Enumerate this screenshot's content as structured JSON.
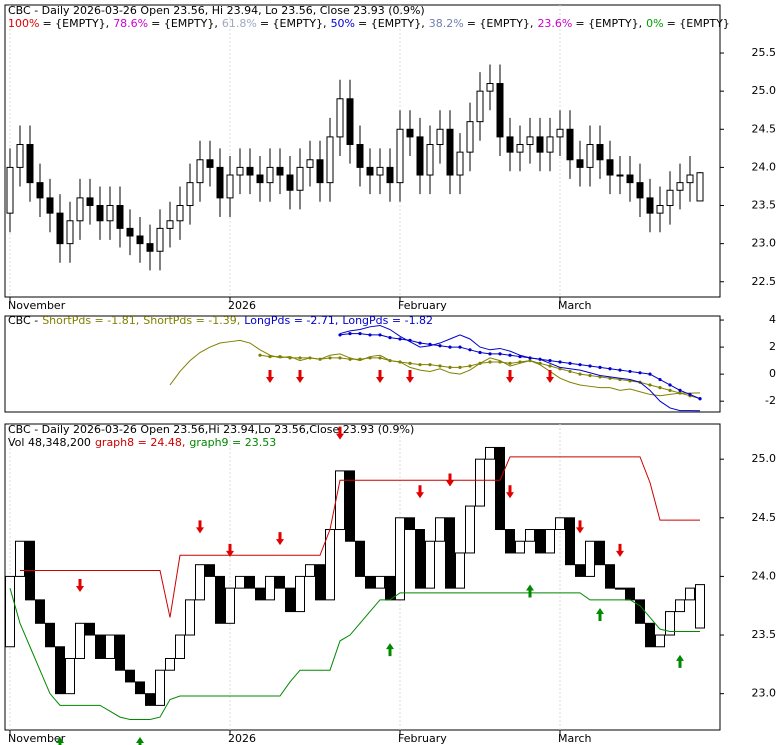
{
  "chart_data": [
    {
      "type": "candlestick",
      "title": "CBC - Daily 2026-03-26 Open 23.56, Hi 23.94, Lo 23.56, Close 23.93 (0.9%)",
      "fib_levels": [
        {
          "label": "100%",
          "text": "= {EMPTY},",
          "color": "#e00000"
        },
        {
          "label": "78.6%",
          "text": "= {EMPTY},",
          "color": "#d000d0"
        },
        {
          "label": "61.8%",
          "text": "= {EMPTY},",
          "color": "#a0a8c0"
        },
        {
          "label": "50%",
          "text": "= {EMPTY},",
          "color": "#0000e0"
        },
        {
          "label": "38.2%",
          "text": "= {EMPTY},",
          "color": "#7080b0"
        },
        {
          "label": "23.6%",
          "text": "= {EMPTY},",
          "color": "#d000d0"
        },
        {
          "label": "0%",
          "text": "= {EMPTY}",
          "color": "#00a000"
        }
      ],
      "open": [
        23.4,
        24.0,
        24.3,
        23.8,
        23.6,
        23.4,
        23.0,
        23.3,
        23.6,
        23.5,
        23.3,
        23.5,
        23.2,
        23.1,
        23.0,
        22.9,
        23.2,
        23.3,
        23.5,
        23.8,
        24.1,
        24.0,
        23.6,
        23.9,
        24.0,
        23.9,
        23.8,
        24.0,
        23.9,
        23.7,
        24.0,
        24.1,
        23.8,
        24.4,
        24.9,
        24.3,
        24.0,
        23.9,
        24.0,
        23.8,
        24.5,
        24.4,
        23.9,
        24.3,
        24.5,
        23.9,
        24.2,
        24.6,
        25.0,
        25.1,
        24.4,
        24.2,
        24.3,
        24.4,
        24.2,
        24.4,
        24.5,
        24.1,
        24.0,
        24.3,
        24.1,
        23.9,
        23.9,
        23.8,
        23.6,
        23.4,
        23.5,
        23.7,
        23.8,
        23.56
      ],
      "high": [
        24.25,
        24.55,
        24.55,
        24.05,
        23.85,
        23.65,
        23.55,
        23.85,
        23.85,
        23.75,
        23.75,
        23.75,
        23.45,
        23.35,
        23.25,
        23.45,
        23.55,
        23.75,
        24.05,
        24.35,
        24.35,
        24.25,
        24.15,
        24.25,
        24.25,
        24.15,
        24.25,
        24.25,
        24.15,
        24.25,
        24.35,
        24.35,
        24.65,
        25.15,
        25.15,
        24.55,
        24.25,
        24.25,
        24.25,
        24.75,
        24.75,
        24.65,
        24.55,
        24.75,
        24.75,
        24.45,
        24.85,
        25.25,
        25.35,
        25.35,
        24.65,
        24.55,
        24.65,
        24.65,
        24.65,
        24.75,
        24.75,
        24.35,
        24.55,
        24.55,
        24.35,
        24.15,
        24.15,
        24.05,
        23.85,
        23.75,
        23.95,
        24.05,
        24.15,
        23.94
      ],
      "low": [
        23.15,
        23.75,
        23.55,
        23.35,
        23.15,
        22.75,
        22.75,
        23.05,
        23.25,
        23.05,
        23.05,
        22.95,
        22.85,
        22.75,
        22.65,
        22.65,
        22.95,
        23.05,
        23.25,
        23.55,
        23.75,
        23.35,
        23.35,
        23.65,
        23.65,
        23.55,
        23.55,
        23.65,
        23.45,
        23.45,
        23.75,
        23.55,
        23.55,
        24.15,
        24.05,
        23.75,
        23.65,
        23.65,
        23.55,
        23.55,
        24.15,
        23.65,
        23.65,
        24.05,
        23.65,
        23.65,
        23.95,
        24.35,
        24.75,
        24.15,
        23.95,
        23.95,
        24.05,
        23.95,
        23.95,
        24.15,
        23.85,
        23.75,
        23.75,
        23.85,
        23.65,
        23.65,
        23.55,
        23.35,
        23.15,
        23.15,
        23.25,
        23.45,
        23.55,
        23.56
      ],
      "close": [
        24.0,
        24.3,
        23.8,
        23.6,
        23.4,
        23.0,
        23.3,
        23.6,
        23.5,
        23.3,
        23.5,
        23.2,
        23.1,
        23.0,
        22.9,
        23.2,
        23.3,
        23.5,
        23.8,
        24.1,
        24.0,
        23.6,
        23.9,
        24.0,
        23.9,
        23.8,
        24.0,
        23.9,
        23.7,
        24.0,
        24.1,
        23.8,
        24.4,
        24.9,
        24.3,
        24.0,
        23.9,
        24.0,
        23.8,
        24.5,
        24.4,
        23.9,
        24.3,
        24.5,
        23.9,
        24.2,
        24.6,
        25.0,
        25.1,
        24.4,
        24.2,
        24.3,
        24.4,
        24.2,
        24.4,
        24.5,
        24.1,
        24.0,
        24.3,
        24.1,
        23.9,
        23.9,
        23.8,
        23.6,
        23.4,
        23.5,
        23.7,
        23.8,
        23.9,
        23.93
      ],
      "ylim": [
        22.3,
        26.13
      ],
      "yticks": [
        22.5,
        {
          "value": 23,
          "label": "23.0"
        },
        23.5,
        {
          "value": 24,
          "label": "24.0"
        },
        24.5,
        {
          "value": 25,
          "label": "25.0"
        },
        25.5
      ],
      "xticks": [
        {
          "value": 0,
          "label": "November"
        },
        {
          "value": 22,
          "label": "2026"
        },
        {
          "value": 39,
          "label": "February"
        },
        {
          "value": 55,
          "label": "March"
        }
      ]
    },
    {
      "type": "line",
      "title": "CBC -",
      "series": [
        {
          "name": "ShortPds = -1.81,",
          "color": "#808000",
          "dotted": true,
          "values": [
            null,
            null,
            null,
            null,
            null,
            null,
            null,
            null,
            null,
            null,
            null,
            null,
            null,
            null,
            null,
            null,
            null,
            null,
            null,
            null,
            null,
            null,
            null,
            null,
            null,
            1.4,
            1.3,
            1.3,
            1.2,
            1.2,
            1.2,
            1.1,
            1.2,
            1.2,
            1.1,
            1.1,
            1.2,
            1.2,
            1.0,
            0.9,
            0.8,
            0.7,
            0.7,
            0.6,
            0.5,
            0.5,
            0.6,
            0.8,
            0.9,
            0.9,
            0.8,
            0.9,
            1.0,
            0.8,
            0.6,
            0.4,
            0.2,
            0.0,
            -0.1,
            -0.2,
            -0.3,
            -0.4,
            -0.5,
            -0.6,
            -0.8,
            -1.0,
            -1.2,
            -1.4,
            -1.6,
            -1.81
          ]
        },
        {
          "name": "ShortPds = -1.39,",
          "color": "#808000",
          "dotted": false,
          "values": [
            null,
            null,
            null,
            null,
            null,
            null,
            null,
            null,
            null,
            null,
            null,
            null,
            null,
            null,
            null,
            null,
            -0.8,
            0.2,
            1.0,
            1.6,
            2.0,
            2.3,
            2.4,
            2.5,
            2.3,
            1.8,
            1.4,
            1.2,
            1.3,
            1.0,
            1.2,
            1.1,
            1.4,
            1.5,
            1.2,
            1.0,
            1.3,
            1.4,
            1.0,
            0.9,
            0.5,
            0.3,
            0.2,
            0.4,
            0.1,
            0.0,
            0.3,
            0.8,
            1.2,
            1.0,
            0.6,
            0.8,
            1.0,
            0.7,
            0.2,
            -0.3,
            -0.6,
            -0.8,
            -0.9,
            -1.0,
            -1.0,
            -1.2,
            -1.1,
            -1.3,
            -1.5,
            -1.6,
            -1.5,
            -1.4,
            -1.4,
            -1.39
          ]
        },
        {
          "name": "LongPds = -2.71,",
          "color": "#0000cc",
          "dotted": false,
          "values": [
            null,
            null,
            null,
            null,
            null,
            null,
            null,
            null,
            null,
            null,
            null,
            null,
            null,
            null,
            null,
            null,
            null,
            null,
            null,
            null,
            null,
            null,
            null,
            null,
            null,
            null,
            null,
            null,
            null,
            null,
            null,
            null,
            null,
            3.0,
            3.2,
            3.3,
            3.5,
            3.6,
            3.3,
            2.8,
            2.4,
            2.0,
            2.1,
            2.3,
            2.6,
            2.9,
            2.6,
            2.0,
            1.8,
            1.9,
            1.7,
            1.4,
            1.2,
            1.1,
            0.8,
            0.5,
            0.4,
            0.3,
            0.1,
            -0.1,
            -0.2,
            -0.3,
            -0.4,
            -0.6,
            -1.2,
            -2.0,
            -2.5,
            -2.7,
            -2.7,
            -2.71
          ]
        },
        {
          "name": "LongPds = -1.82",
          "color": "#0000cc",
          "dotted": true,
          "values": [
            null,
            null,
            null,
            null,
            null,
            null,
            null,
            null,
            null,
            null,
            null,
            null,
            null,
            null,
            null,
            null,
            null,
            null,
            null,
            null,
            null,
            null,
            null,
            null,
            null,
            null,
            null,
            null,
            null,
            null,
            null,
            null,
            null,
            2.9,
            3.0,
            3.0,
            2.9,
            2.9,
            2.7,
            2.6,
            2.5,
            2.3,
            2.2,
            2.1,
            2.0,
            2.0,
            1.8,
            1.6,
            1.5,
            1.5,
            1.4,
            1.3,
            1.2,
            1.1,
            1.0,
            0.9,
            0.8,
            0.7,
            0.6,
            0.5,
            0.4,
            0.3,
            0.2,
            0.1,
            0.0,
            -0.4,
            -0.8,
            -1.2,
            -1.5,
            -1.82
          ]
        }
      ],
      "sell_signals": [
        26,
        29,
        37,
        40,
        50,
        54
      ],
      "ylim": [
        -2.8,
        4.3
      ],
      "yticks": [
        4,
        2,
        0,
        -2
      ]
    },
    {
      "type": "candlestick-body",
      "title": "CBC - Daily 2026-03-26 Open 23.56,Hi 23.94,Lo 23.56,Close 23.93 (0.9%)",
      "volume_label": "Vol 48,348,200",
      "series": [
        {
          "name": "graph8 = 24.48,",
          "color": "#cc0000",
          "values": [
            null,
            24.05,
            24.05,
            24.05,
            24.05,
            24.05,
            24.05,
            24.05,
            24.05,
            24.05,
            24.05,
            24.05,
            24.05,
            24.05,
            24.05,
            24.05,
            23.65,
            24.18,
            24.18,
            24.18,
            24.18,
            24.18,
            24.18,
            24.18,
            24.18,
            24.18,
            24.18,
            24.18,
            24.18,
            24.18,
            24.18,
            24.18,
            24.4,
            24.82,
            24.82,
            24.82,
            24.82,
            24.82,
            24.82,
            24.82,
            24.82,
            24.82,
            24.82,
            24.82,
            24.82,
            24.82,
            24.82,
            24.82,
            24.82,
            24.82,
            25.02,
            25.02,
            25.02,
            25.02,
            25.02,
            25.02,
            25.02,
            25.02,
            25.02,
            25.02,
            25.02,
            25.02,
            25.02,
            25.02,
            24.8,
            24.48,
            24.48,
            24.48,
            24.48,
            24.48
          ]
        },
        {
          "name": "graph9 = 23.53",
          "color": "#008800",
          "values": [
            23.9,
            23.6,
            23.4,
            23.2,
            23.0,
            22.9,
            22.9,
            22.9,
            22.9,
            22.9,
            22.85,
            22.8,
            22.78,
            22.78,
            22.78,
            22.8,
            22.95,
            22.98,
            22.98,
            22.98,
            22.98,
            22.98,
            22.98,
            22.98,
            22.98,
            22.98,
            22.98,
            22.98,
            23.1,
            23.2,
            23.2,
            23.2,
            23.2,
            23.45,
            23.5,
            23.6,
            23.7,
            23.8,
            23.8,
            23.86,
            23.86,
            23.86,
            23.86,
            23.86,
            23.86,
            23.86,
            23.86,
            23.86,
            23.86,
            23.86,
            23.86,
            23.86,
            23.86,
            23.86,
            23.86,
            23.86,
            23.86,
            23.86,
            23.8,
            23.8,
            23.8,
            23.8,
            23.8,
            23.75,
            23.65,
            23.55,
            23.53,
            23.53,
            23.53,
            23.53
          ]
        }
      ],
      "sell_signals": [
        7,
        19,
        22,
        27,
        33,
        41,
        44,
        50,
        57,
        61
      ],
      "buy_signals": [
        5,
        13,
        38,
        52,
        59,
        67
      ],
      "ylim": [
        22.69,
        25.3
      ],
      "yticks": [
        {
          "value": 23,
          "label": "23.0"
        },
        23.5,
        {
          "value": 24,
          "label": "24.0"
        },
        24.5,
        {
          "value": 25,
          "label": "25.0"
        }
      ],
      "xticks": [
        {
          "value": 0,
          "label": "November"
        },
        {
          "value": 22,
          "label": "2026"
        },
        {
          "value": 39,
          "label": "February"
        },
        {
          "value": 55,
          "label": "March"
        }
      ]
    }
  ]
}
